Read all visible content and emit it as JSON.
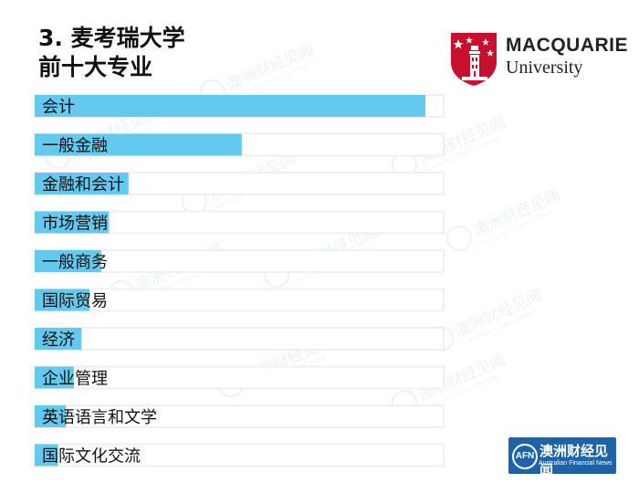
{
  "header": {
    "title_line1": "3. 麦考瑞大学",
    "title_line2": "前十大专业"
  },
  "logo": {
    "brand": "MACQUARIE",
    "subtitle": "University",
    "color": "#c8102e"
  },
  "watermark": {
    "name": "澳洲财经见闻",
    "english": "Australian Financial News"
  },
  "badge": {
    "short": "AFN",
    "name": "澳洲财经见闻",
    "english": "Australian Financial News"
  },
  "chart_data": {
    "type": "bar",
    "orientation": "horizontal",
    "title": "前十大专业",
    "categories": [
      "会计",
      "一般金融",
      "金融和会计",
      "市场营销",
      "一般商务",
      "国际贸易",
      "经济",
      "企业管理",
      "英语语言和文学",
      "国际文化交流"
    ],
    "values": [
      100,
      53,
      24,
      19,
      17,
      14,
      12,
      10,
      8,
      6
    ],
    "xlim": [
      0,
      100
    ],
    "bar_color": "#63c9ee",
    "track_color": "#eef1f3",
    "grid": false,
    "legend": "none"
  }
}
